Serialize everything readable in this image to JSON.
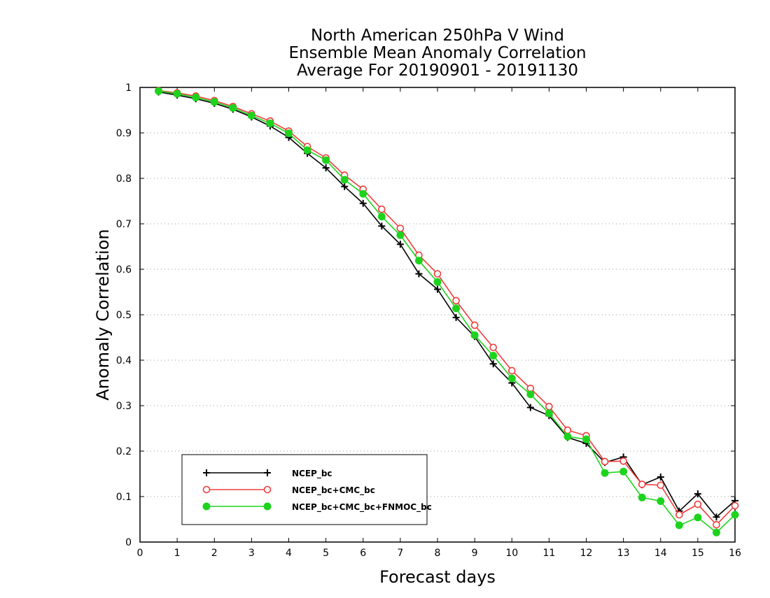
{
  "chart_data": {
    "type": "line",
    "title": [
      "North American 250hPa V Wind",
      "Ensemble Mean Anomaly Correlation",
      "Average For 20190901 - 20191130"
    ],
    "xlabel": "Forecast days",
    "ylabel": "Anomaly Correlation",
    "xlim": [
      0,
      16
    ],
    "ylim": [
      0,
      1
    ],
    "xticks": [
      0,
      1,
      2,
      3,
      4,
      5,
      6,
      7,
      8,
      9,
      10,
      11,
      12,
      13,
      14,
      15,
      16
    ],
    "yticks": [
      0,
      0.1,
      0.2,
      0.3,
      0.4,
      0.5,
      0.6,
      0.7,
      0.8,
      0.9,
      1
    ],
    "grid": "horizontal dotted",
    "legend": "bottom-left",
    "x": [
      0.5,
      1,
      1.5,
      2,
      2.5,
      3,
      3.5,
      4,
      4.5,
      5,
      5.5,
      6,
      6.5,
      7,
      7.5,
      8,
      8.5,
      9,
      9.5,
      10,
      10.5,
      11,
      11.5,
      12,
      12.5,
      13,
      13.5,
      14,
      14.5,
      15,
      15.5,
      16
    ],
    "series": [
      {
        "name": "NCEP_bc",
        "color": "#000000",
        "marker": "plus",
        "values": [
          0.99,
          0.983,
          0.975,
          0.965,
          0.952,
          0.935,
          0.915,
          0.89,
          0.855,
          0.823,
          0.782,
          0.745,
          0.695,
          0.655,
          0.59,
          0.556,
          0.494,
          0.452,
          0.392,
          0.35,
          0.296,
          0.278,
          0.23,
          0.217,
          0.175,
          0.187,
          0.126,
          0.143,
          0.068,
          0.106,
          0.055,
          0.091
        ]
      },
      {
        "name": "NCEP_bc+CMC_bc",
        "color": "#f03c3c",
        "marker": "open-circle",
        "values": [
          0.993,
          0.988,
          0.981,
          0.971,
          0.958,
          0.942,
          0.926,
          0.904,
          0.87,
          0.845,
          0.807,
          0.776,
          0.732,
          0.69,
          0.631,
          0.59,
          0.531,
          0.477,
          0.428,
          0.377,
          0.338,
          0.298,
          0.246,
          0.234,
          0.177,
          0.178,
          0.127,
          0.125,
          0.06,
          0.083,
          0.038,
          0.08
        ]
      },
      {
        "name": "NCEP_bc+CMC_bc+FNMOC_bc",
        "color": "#1ed31e",
        "marker": "filled-circle",
        "values": [
          0.992,
          0.986,
          0.978,
          0.968,
          0.955,
          0.938,
          0.921,
          0.899,
          0.862,
          0.84,
          0.797,
          0.766,
          0.716,
          0.675,
          0.619,
          0.572,
          0.514,
          0.455,
          0.41,
          0.36,
          0.325,
          0.283,
          0.232,
          0.226,
          0.152,
          0.155,
          0.098,
          0.09,
          0.037,
          0.054,
          0.021,
          0.06
        ]
      }
    ]
  }
}
